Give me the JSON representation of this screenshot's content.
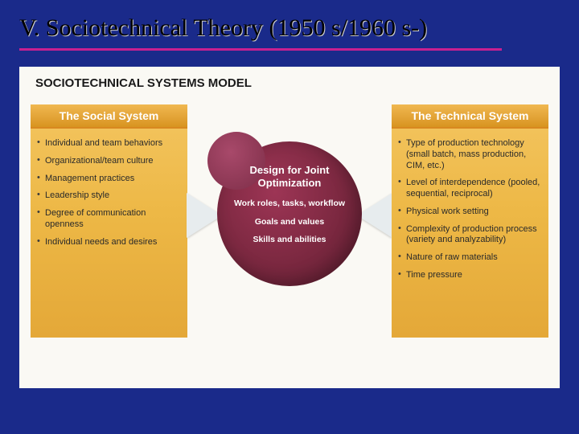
{
  "colors": {
    "page_bg": "#1a2a8a",
    "underline": "#c82090",
    "content_bg": "#faf9f4",
    "yellow_top": "#f0b850",
    "yellow_mid": "#e2a235",
    "circle_main": "#7b2840",
    "circle_hi": "#9d3555",
    "arrow": "#e7ecee"
  },
  "title": "V. Sociotechnical Theory (1950 s/1960 s-)",
  "subtitle": "SOCIOTECHNICAL SYSTEMS MODEL",
  "left": {
    "header": "The Social System",
    "items": [
      "Individual and team behaviors",
      "Organizational/team culture",
      "Management practices",
      "Leadership style",
      "Degree of communication openness",
      "Individual needs and desires"
    ]
  },
  "right": {
    "header": "The Technical System",
    "items": [
      "Type of production technology (small batch, mass production, CIM, etc.)",
      "Level of interdependence (pooled, sequential, reciprocal)",
      "Physical work setting",
      "Complexity of production process (variety and analyzability)",
      "Nature of raw materials",
      "Time pressure"
    ]
  },
  "center": {
    "title": "Design for Joint Optimization",
    "items": [
      "Work roles, tasks, workflow",
      "Goals and values",
      "Skills and abilities"
    ]
  }
}
